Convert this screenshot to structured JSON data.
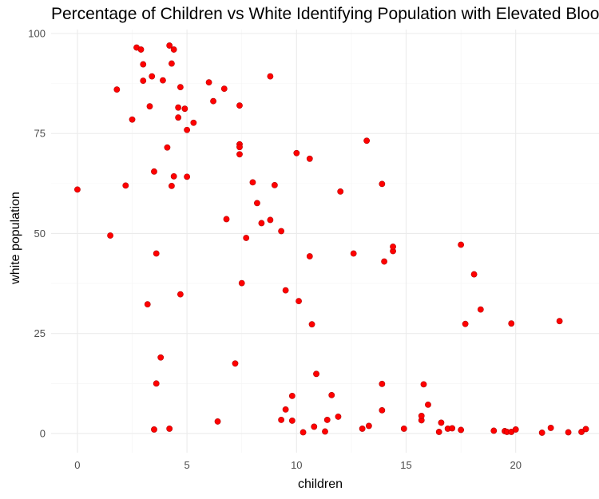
{
  "chart_data": {
    "type": "scatter",
    "title": "Percentage of Children vs White Identifying Population with Elevated Blood",
    "xlabel": "children",
    "ylabel": "white population",
    "xlim": [
      -1.2,
      23.8
    ],
    "ylim": [
      -4.8,
      101
    ],
    "x_ticks": [
      0,
      5,
      10,
      15,
      20
    ],
    "y_ticks": [
      0,
      25,
      50,
      75,
      100
    ],
    "grid": true,
    "color": "#ff0000",
    "points": [
      [
        0.0,
        61.0
      ],
      [
        1.5,
        49.5
      ],
      [
        1.8,
        86.0
      ],
      [
        2.2,
        62.0
      ],
      [
        2.5,
        78.5
      ],
      [
        2.7,
        96.5
      ],
      [
        2.9,
        96.0
      ],
      [
        3.0,
        92.3
      ],
      [
        3.0,
        88.2
      ],
      [
        3.2,
        32.3
      ],
      [
        3.3,
        81.8
      ],
      [
        3.4,
        89.3
      ],
      [
        3.5,
        65.5
      ],
      [
        3.5,
        1.0
      ],
      [
        3.6,
        45.0
      ],
      [
        3.6,
        12.5
      ],
      [
        3.8,
        19.0
      ],
      [
        3.9,
        88.3
      ],
      [
        4.1,
        71.5
      ],
      [
        4.2,
        97.0
      ],
      [
        4.2,
        1.2
      ],
      [
        4.3,
        61.9
      ],
      [
        4.3,
        92.5
      ],
      [
        4.4,
        64.3
      ],
      [
        4.4,
        96.0
      ],
      [
        4.6,
        81.5
      ],
      [
        4.6,
        79.0
      ],
      [
        4.7,
        86.6
      ],
      [
        4.7,
        34.8
      ],
      [
        4.9,
        81.2
      ],
      [
        5.0,
        75.9
      ],
      [
        5.0,
        64.2
      ],
      [
        5.3,
        77.7
      ],
      [
        6.0,
        87.8
      ],
      [
        6.2,
        83.1
      ],
      [
        6.4,
        3.0
      ],
      [
        6.7,
        86.2
      ],
      [
        6.8,
        53.6
      ],
      [
        7.2,
        17.5
      ],
      [
        7.4,
        82.0
      ],
      [
        7.4,
        72.3
      ],
      [
        7.4,
        71.6
      ],
      [
        7.4,
        69.8
      ],
      [
        7.5,
        37.6
      ],
      [
        7.7,
        48.9
      ],
      [
        8.0,
        62.8
      ],
      [
        8.2,
        57.6
      ],
      [
        8.4,
        52.6
      ],
      [
        8.8,
        53.4
      ],
      [
        8.8,
        89.3
      ],
      [
        9.0,
        62.1
      ],
      [
        9.3,
        50.6
      ],
      [
        9.3,
        3.4
      ],
      [
        9.5,
        35.8
      ],
      [
        9.5,
        6.0
      ],
      [
        9.8,
        3.2
      ],
      [
        9.8,
        9.4
      ],
      [
        10.0,
        70.1
      ],
      [
        10.1,
        33.1
      ],
      [
        10.3,
        0.3
      ],
      [
        10.6,
        68.7
      ],
      [
        10.6,
        44.3
      ],
      [
        10.7,
        27.3
      ],
      [
        10.8,
        1.7
      ],
      [
        10.9,
        14.9
      ],
      [
        11.3,
        0.5
      ],
      [
        11.4,
        3.4
      ],
      [
        11.6,
        9.6
      ],
      [
        11.9,
        4.2
      ],
      [
        12.0,
        60.5
      ],
      [
        12.6,
        45.0
      ],
      [
        13.0,
        1.2
      ],
      [
        13.2,
        73.2
      ],
      [
        13.3,
        1.9
      ],
      [
        13.9,
        62.4
      ],
      [
        13.9,
        12.4
      ],
      [
        13.9,
        5.8
      ],
      [
        14.0,
        43.0
      ],
      [
        14.4,
        45.6
      ],
      [
        14.4,
        46.7
      ],
      [
        14.9,
        1.2
      ],
      [
        15.7,
        3.3
      ],
      [
        15.7,
        4.4
      ],
      [
        15.8,
        12.3
      ],
      [
        16.0,
        7.2
      ],
      [
        16.5,
        0.4
      ],
      [
        16.6,
        2.7
      ],
      [
        16.9,
        1.2
      ],
      [
        17.1,
        1.3
      ],
      [
        17.5,
        47.2
      ],
      [
        17.5,
        0.9
      ],
      [
        17.7,
        27.4
      ],
      [
        18.1,
        39.8
      ],
      [
        18.4,
        31.0
      ],
      [
        19.0,
        0.7
      ],
      [
        19.5,
        0.6
      ],
      [
        19.6,
        0.4
      ],
      [
        19.8,
        27.5
      ],
      [
        19.8,
        0.4
      ],
      [
        20.0,
        1.0
      ],
      [
        21.2,
        0.2
      ],
      [
        21.6,
        1.4
      ],
      [
        22.0,
        28.1
      ],
      [
        22.4,
        0.3
      ],
      [
        23.0,
        0.4
      ],
      [
        23.2,
        1.1
      ]
    ]
  }
}
